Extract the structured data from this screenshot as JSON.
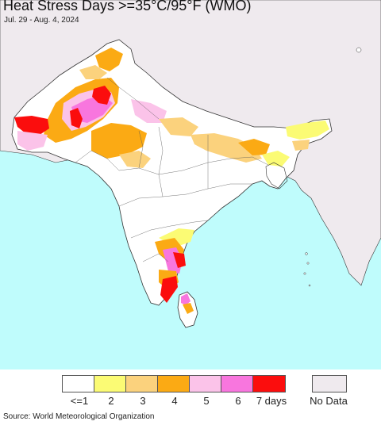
{
  "header": {
    "title": "Heat Stress Days >=35°C/95°F (WMO)",
    "subtitle": "Jul. 29 - Aug. 4, 2024"
  },
  "legend": {
    "items": [
      {
        "label": "<=1",
        "color": "#ffffff"
      },
      {
        "label": "2",
        "color": "#fbfb74"
      },
      {
        "label": "3",
        "color": "#fbd27d"
      },
      {
        "label": "4",
        "color": "#fbaa14"
      },
      {
        "label": "5",
        "color": "#fbc3e9"
      },
      {
        "label": "6",
        "color": "#f876de"
      },
      {
        "label": "7 days",
        "color": "#fb0d0d"
      }
    ],
    "no_data": {
      "label": "No Data",
      "color": "#efeaee"
    }
  },
  "colors": {
    "ocean": "#bffcfc",
    "no_data_land": "#efeaee",
    "border": "#333333"
  },
  "source": "Source: World Meteorological Organization"
}
